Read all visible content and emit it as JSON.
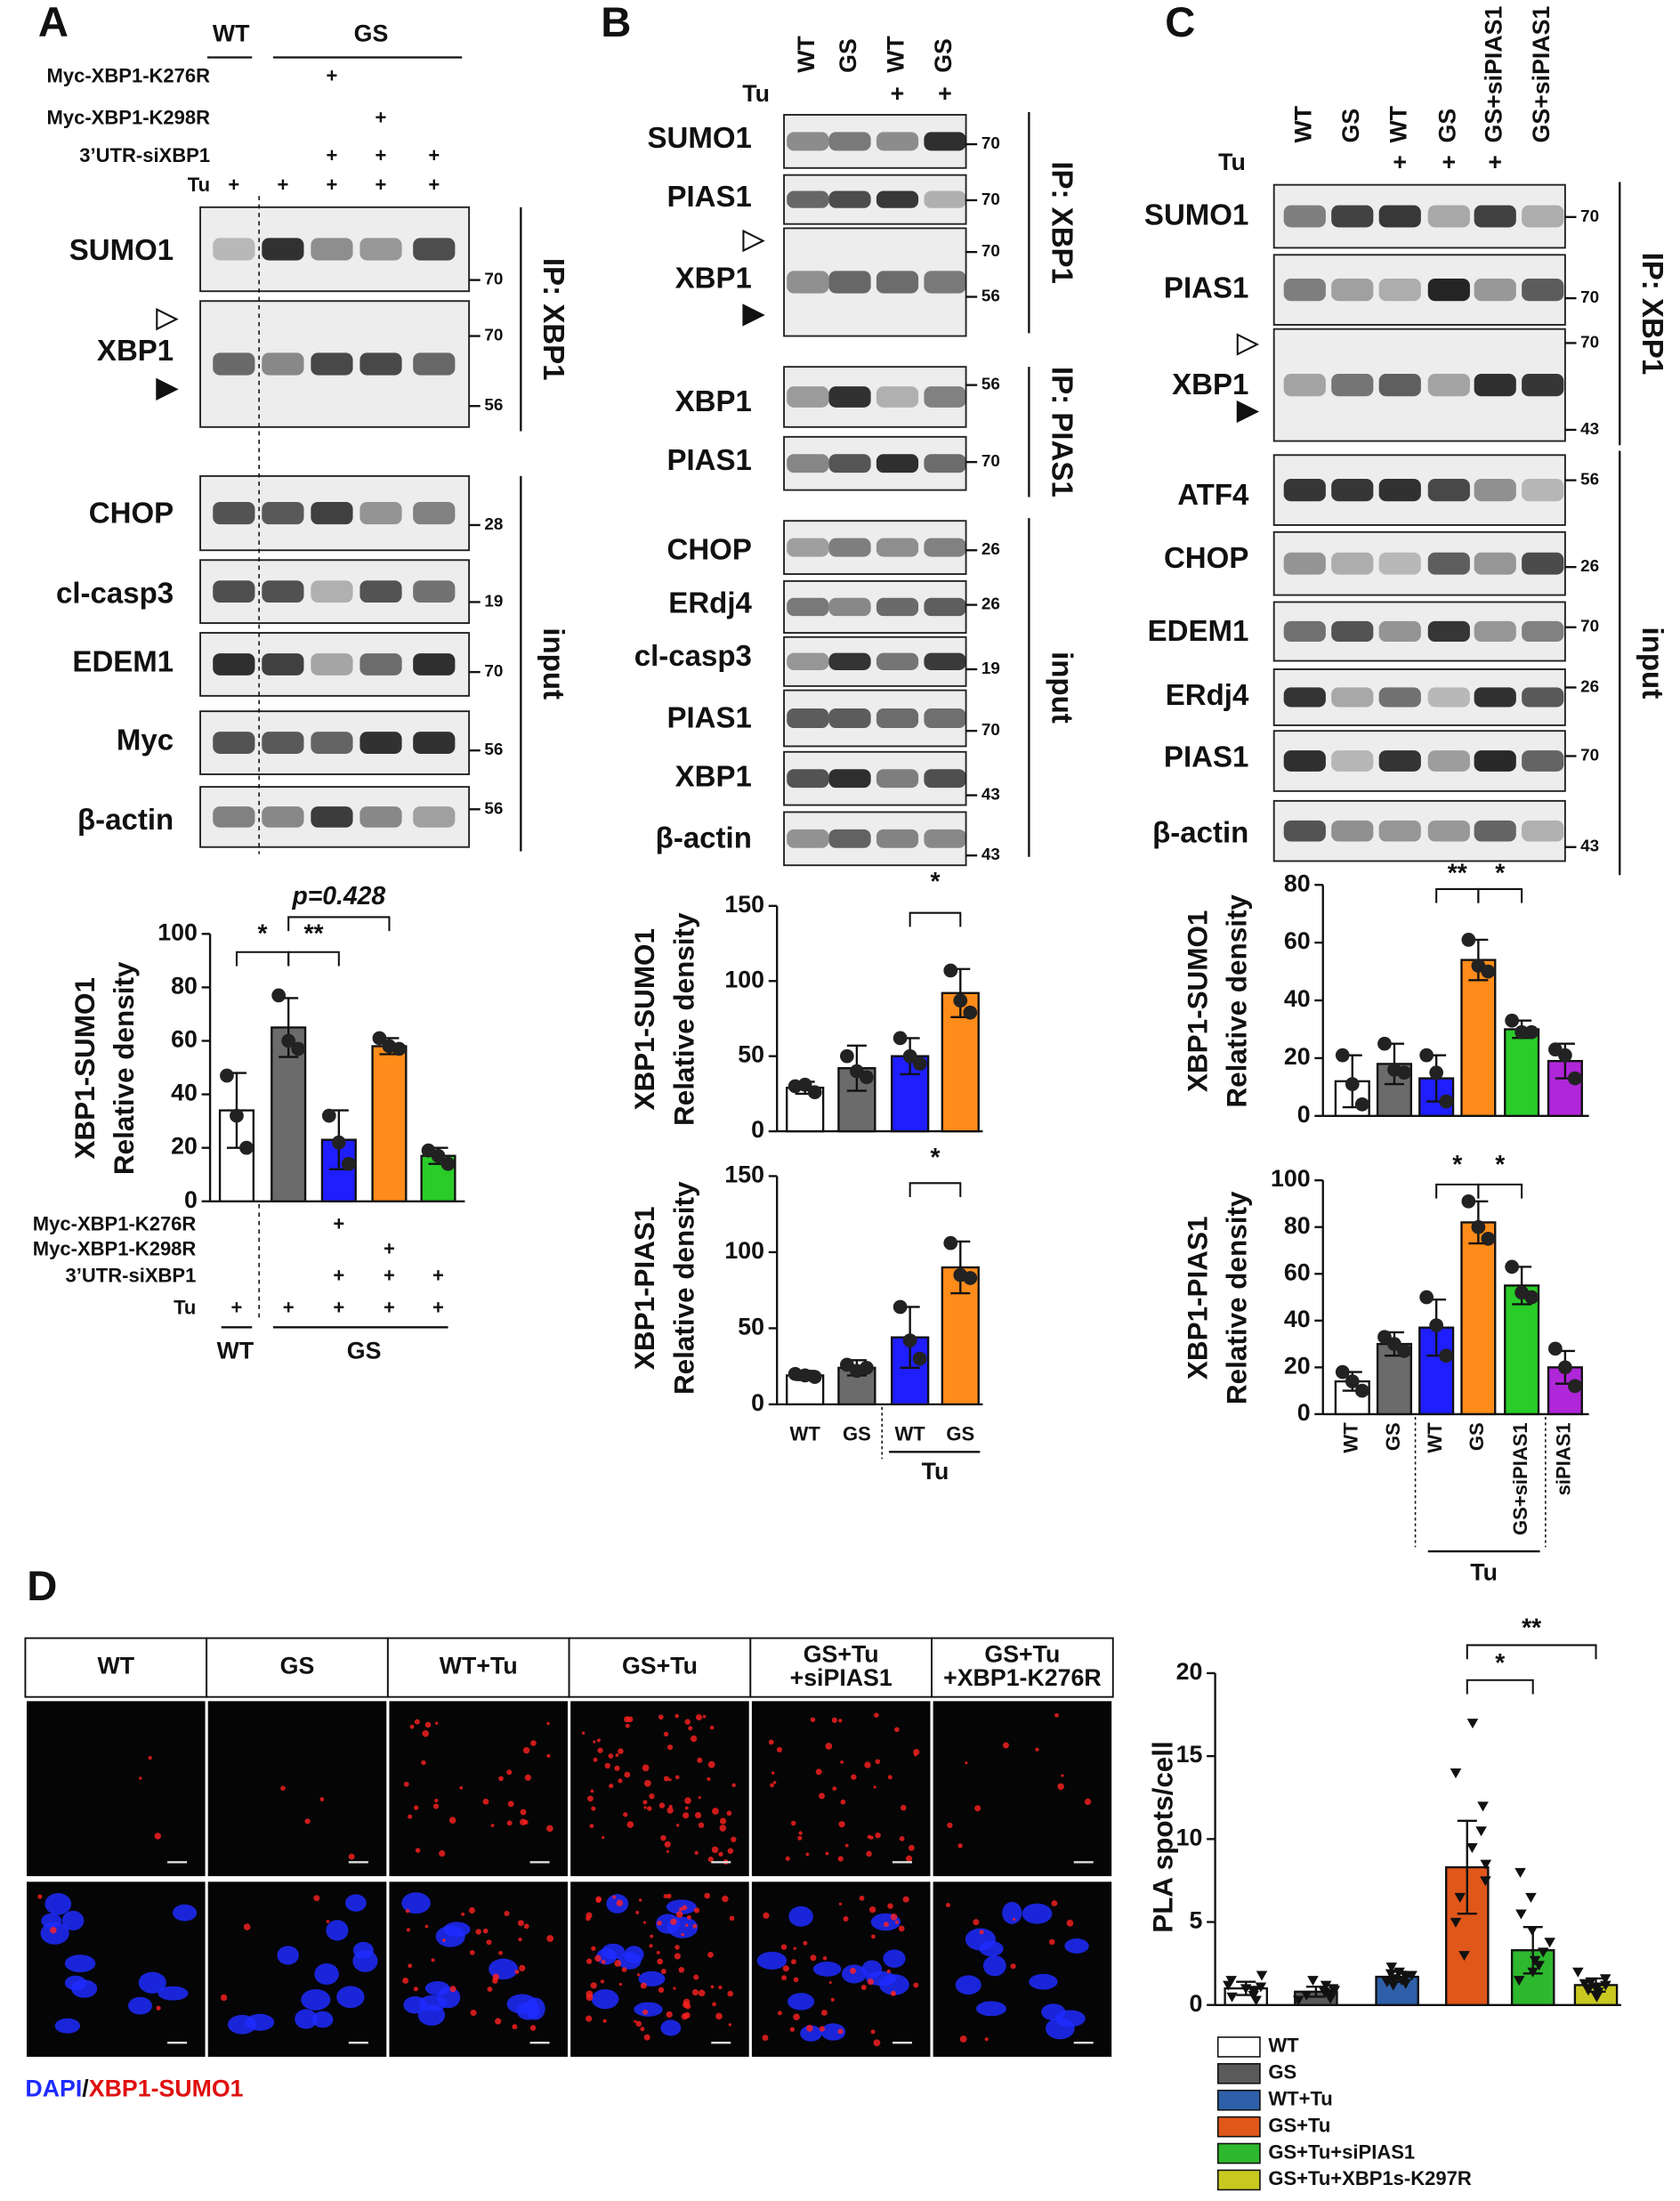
{
  "panel_labels": [
    "A",
    "B",
    "C",
    "D"
  ],
  "blots": {
    "a": {
      "groups": [
        "WT",
        "GS"
      ],
      "conditions": [
        {
          "label": "Myc-XBP1-K276R",
          "marks": [
            null,
            null,
            "+",
            null,
            null
          ]
        },
        {
          "label": "Myc-XBP1-K298R",
          "marks": [
            null,
            null,
            null,
            "+",
            null
          ]
        },
        {
          "label": "3’UTR-siXBP1",
          "marks": [
            null,
            null,
            "+",
            "+",
            "+"
          ]
        },
        {
          "label": "Tu",
          "marks": [
            "+",
            "+",
            "+",
            "+",
            "+"
          ]
        }
      ],
      "rows": [
        {
          "label": "SUMO1",
          "mw": [
            70
          ]
        },
        {
          "label": "XBP1",
          "mw": [
            70,
            56
          ]
        },
        {
          "label": "CHOP",
          "mw": [
            28
          ]
        },
        {
          "label": "cl-casp3",
          "mw": [
            19
          ]
        },
        {
          "label": "EDEM1",
          "mw": [
            70
          ]
        },
        {
          "label": "Myc",
          "mw": [
            56
          ]
        },
        {
          "label": "β-actin",
          "mw": [
            56
          ]
        }
      ],
      "brackets": [
        "IP: XBP1",
        "input"
      ]
    },
    "b": {
      "lanes": [
        "WT",
        "GS",
        "WT",
        "GS"
      ],
      "treatment": {
        "label": "Tu",
        "marks": [
          null,
          null,
          "+",
          "+"
        ]
      },
      "rows": [
        {
          "label": "SUMO1",
          "mw": [
            70
          ]
        },
        {
          "label": "PIAS1",
          "mw": [
            70
          ]
        },
        {
          "label": "XBP1",
          "mw": [
            70,
            56
          ]
        },
        {
          "label": "XBP1",
          "mw": [
            56
          ]
        },
        {
          "label": "PIAS1",
          "mw": [
            70
          ]
        },
        {
          "label": "CHOP",
          "mw": [
            26
          ]
        },
        {
          "label": "ERdj4",
          "mw": [
            26
          ]
        },
        {
          "label": "cl-casp3",
          "mw": [
            19
          ]
        },
        {
          "label": "PIAS1",
          "mw": [
            70
          ]
        },
        {
          "label": "XBP1",
          "mw": [
            43
          ]
        },
        {
          "label": "β-actin",
          "mw": [
            43
          ]
        }
      ],
      "brackets": [
        "IP: XBP1",
        "IP: PIAS1",
        "input"
      ]
    },
    "c": {
      "lanes": [
        "WT",
        "GS",
        "WT",
        "GS",
        "GS+siPIAS1",
        "GS+siPIAS1"
      ],
      "treatment": {
        "label": "Tu",
        "marks": [
          null,
          null,
          "+",
          "+",
          "+",
          null
        ]
      },
      "rows": [
        {
          "label": "SUMO1",
          "mw": [
            70
          ]
        },
        {
          "label": "PIAS1",
          "mw": [
            70
          ]
        },
        {
          "label": "XBP1",
          "mw": [
            70,
            43
          ]
        },
        {
          "label": "ATF4",
          "mw": [
            56
          ]
        },
        {
          "label": "CHOP",
          "mw": [
            26
          ]
        },
        {
          "label": "EDEM1",
          "mw": [
            70
          ]
        },
        {
          "label": "ERdj4",
          "mw": [
            26
          ]
        },
        {
          "label": "PIAS1",
          "mw": [
            70
          ]
        },
        {
          "label": "β-actin",
          "mw": [
            43
          ]
        }
      ],
      "brackets": [
        "IP: XBP1",
        "input"
      ]
    }
  },
  "micrograph": {
    "columns": [
      [
        "WT"
      ],
      [
        "GS"
      ],
      [
        "WT+Tu"
      ],
      [
        "GS+Tu"
      ],
      [
        "GS+Tu",
        "+siPIAS1"
      ],
      [
        "GS+Tu",
        "+XBP1-K276R"
      ]
    ],
    "caption": [
      "DAPI",
      "/",
      "XBP1-SUMO1"
    ]
  },
  "chart_data": [
    {
      "type": "bar",
      "ylabel": "XBP1-SUMO1",
      "ylabel2": "Relative density",
      "categories": [
        null,
        null,
        null,
        null,
        null
      ],
      "values": [
        34,
        65,
        23,
        58,
        17
      ],
      "errors": [
        14,
        11,
        11,
        3,
        3
      ],
      "points": [
        [
          47,
          32,
          20
        ],
        [
          77,
          60,
          57
        ],
        [
          32,
          22,
          14
        ],
        [
          61,
          58,
          57
        ],
        [
          19,
          17,
          14
        ]
      ],
      "colors": [
        "#ffffff",
        "#6b6b6b",
        "#1e1eff",
        "#ff8c1a",
        "#29cc29"
      ],
      "ylim": [
        0,
        100
      ],
      "yticks": [
        0,
        20,
        40,
        60,
        80,
        100
      ],
      "annotations": [
        "*",
        "**",
        "p=0.428"
      ],
      "groups": [
        "WT",
        "GS"
      ],
      "conditions": [
        {
          "label": "Myc-XBP1-K276R",
          "marks": [
            null,
            null,
            "+",
            null,
            null
          ]
        },
        {
          "label": "Myc-XBP1-K298R",
          "marks": [
            null,
            null,
            null,
            "+",
            null
          ]
        },
        {
          "label": "3’UTR-siXBP1",
          "marks": [
            null,
            null,
            "+",
            "+",
            "+"
          ]
        },
        {
          "label": "Tu",
          "marks": [
            "+",
            "+",
            "+",
            "+",
            "+"
          ]
        }
      ]
    },
    {
      "type": "bar",
      "ylabel": "XBP1-SUMO1",
      "ylabel2": "Relative density",
      "categories": [
        null,
        null,
        null,
        null
      ],
      "values": [
        29,
        42,
        50,
        92
      ],
      "errors": [
        4,
        15,
        12,
        16
      ],
      "points": [
        [
          30,
          31,
          26
        ],
        [
          50,
          40,
          36
        ],
        [
          62,
          50,
          45
        ],
        [
          107,
          87,
          79
        ]
      ],
      "colors": [
        "#ffffff",
        "#6b6b6b",
        "#1e1eff",
        "#ff8c1a"
      ],
      "ylim": [
        0,
        150
      ],
      "yticks": [
        0,
        50,
        100,
        150
      ],
      "annotations": [
        "*"
      ]
    },
    {
      "type": "bar",
      "ylabel": "XBP1-PIAS1",
      "ylabel2": "Relative density",
      "categories": [
        "WT",
        "GS",
        "WT",
        "GS"
      ],
      "group_label": "Tu",
      "values": [
        19,
        24,
        44,
        90
      ],
      "errors": [
        3,
        5,
        20,
        17
      ],
      "points": [
        [
          20,
          19,
          18
        ],
        [
          26,
          22,
          24
        ],
        [
          64,
          42,
          30
        ],
        [
          106,
          85,
          83
        ]
      ],
      "colors": [
        "#ffffff",
        "#6b6b6b",
        "#1e1eff",
        "#ff8c1a"
      ],
      "ylim": [
        0,
        150
      ],
      "yticks": [
        0,
        50,
        100,
        150
      ],
      "annotations": [
        "*"
      ]
    },
    {
      "type": "bar",
      "ylabel": "XBP1-SUMO1",
      "ylabel2": "Relative density",
      "categories": [
        null,
        null,
        null,
        null,
        null,
        null
      ],
      "values": [
        12,
        18,
        13,
        54,
        30,
        19
      ],
      "errors": [
        9,
        7,
        8,
        7,
        3,
        6
      ],
      "points": [
        [
          21,
          11,
          4
        ],
        [
          25,
          16,
          15
        ],
        [
          21,
          15,
          5
        ],
        [
          61,
          52,
          50
        ],
        [
          33,
          29,
          29
        ],
        [
          23,
          21,
          13
        ]
      ],
      "colors": [
        "#ffffff",
        "#6b6b6b",
        "#1e1eff",
        "#ff8c1a",
        "#29cc29",
        "#b026d9"
      ],
      "ylim": [
        0,
        80
      ],
      "yticks": [
        0,
        20,
        40,
        60,
        80
      ],
      "annotations": [
        "**",
        "*"
      ]
    },
    {
      "type": "bar",
      "ylabel": "XBP1-PIAS1",
      "ylabel2": "Relative density",
      "categories": [
        "WT",
        "GS",
        "WT",
        "GS",
        "GS+siPIAS1",
        "siPIAS1"
      ],
      "group_label": "Tu",
      "values": [
        14,
        30,
        37,
        82,
        55,
        20
      ],
      "errors": [
        4,
        5,
        12,
        9,
        8,
        7
      ],
      "points": [
        [
          18,
          14,
          10
        ],
        [
          33,
          30,
          27
        ],
        [
          50,
          38,
          25
        ],
        [
          91,
          80,
          75
        ],
        [
          63,
          52,
          50
        ],
        [
          28,
          20,
          12
        ]
      ],
      "colors": [
        "#ffffff",
        "#6b6b6b",
        "#1e1eff",
        "#ff8c1a",
        "#29cc29",
        "#b026d9"
      ],
      "ylim": [
        0,
        100
      ],
      "yticks": [
        0,
        20,
        40,
        60,
        80,
        100
      ],
      "annotations": [
        "*",
        "*"
      ]
    },
    {
      "type": "bar",
      "ylabel": "PLA spots/cell",
      "categories": [
        "WT",
        "GS",
        "WT+Tu",
        "GS+Tu",
        "GS+Tu+siPIAS1",
        "GS+Tu+XBP1s-K297R"
      ],
      "legend": true,
      "values": [
        1.0,
        0.8,
        1.7,
        8.3,
        3.3,
        1.2
      ],
      "errors": [
        0.4,
        0.3,
        0.3,
        2.8,
        1.4,
        0.4
      ],
      "points": [
        [
          0.3,
          0.6,
          0.8,
          1.0,
          1.2,
          1.5,
          1.8,
          0.5,
          0.9,
          1.1
        ],
        [
          0.3,
          0.5,
          0.7,
          0.9,
          1.0,
          1.2,
          1.5,
          0.6,
          0.8,
          0.4
        ],
        [
          1.2,
          1.4,
          1.6,
          1.8,
          2.0,
          2.3,
          1.5,
          1.7,
          1.9,
          1.3
        ],
        [
          3.0,
          5.0,
          6.5,
          7.5,
          8.5,
          9.5,
          10.5,
          12.0,
          14.0,
          17.0
        ],
        [
          1.5,
          2.0,
          2.7,
          3.2,
          3.8,
          4.5,
          5.5,
          6.5,
          8.0,
          2.4
        ],
        [
          0.5,
          0.8,
          1.0,
          1.2,
          1.4,
          1.6,
          2.0,
          0.9,
          1.1,
          1.3
        ]
      ],
      "colors": [
        "#ffffff",
        "#5a5a5a",
        "#2e5fa8",
        "#e0571a",
        "#2db82d",
        "#c8c820"
      ],
      "ylim": [
        0,
        20
      ],
      "yticks": [
        0,
        5,
        10,
        15,
        20
      ],
      "annotations": [
        "**",
        "*"
      ]
    }
  ]
}
